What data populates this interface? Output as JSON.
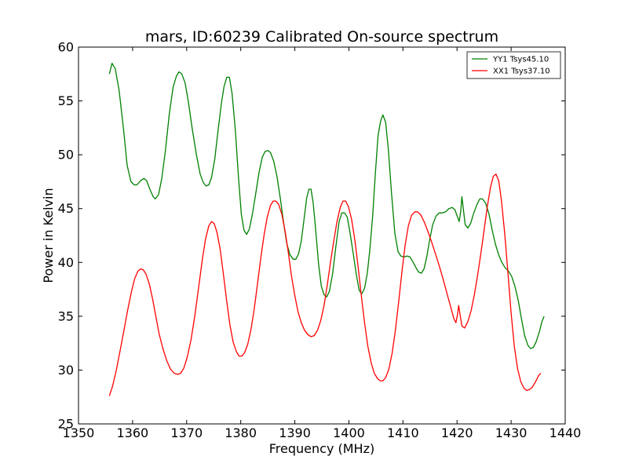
{
  "chart_data": {
    "type": "line",
    "title": "mars, ID:60239 Calibrated On-source spectrum",
    "xlabel": "Frequency (MHz)",
    "ylabel": "Power in Kelvin",
    "xlim": [
      1350,
      1440
    ],
    "ylim": [
      25,
      60
    ],
    "xticks": [
      1350,
      1360,
      1370,
      1380,
      1390,
      1400,
      1410,
      1420,
      1430,
      1440
    ],
    "yticks": [
      25,
      30,
      35,
      40,
      45,
      50,
      55,
      60
    ],
    "grid": false,
    "legend_position": "top-right",
    "series": [
      {
        "name": "YY1 Tsys45.10",
        "color": "#008000",
        "points": [
          [
            1355.7,
            57.5
          ],
          [
            1356.2,
            58.5
          ],
          [
            1356.8,
            58.0
          ],
          [
            1357.5,
            56.0
          ],
          [
            1358.3,
            52.5
          ],
          [
            1359.0,
            49.0
          ],
          [
            1359.7,
            47.5
          ],
          [
            1360.3,
            47.2
          ],
          [
            1360.8,
            47.2
          ],
          [
            1361.5,
            47.6
          ],
          [
            1362.1,
            47.8
          ],
          [
            1362.6,
            47.6
          ],
          [
            1363.2,
            46.8
          ],
          [
            1363.8,
            46.1
          ],
          [
            1364.2,
            45.9
          ],
          [
            1364.8,
            46.3
          ],
          [
            1365.4,
            47.8
          ],
          [
            1366.1,
            50.5
          ],
          [
            1366.8,
            53.8
          ],
          [
            1367.5,
            56.3
          ],
          [
            1368.1,
            57.3
          ],
          [
            1368.6,
            57.7
          ],
          [
            1369.1,
            57.5
          ],
          [
            1369.7,
            56.7
          ],
          [
            1370.3,
            55.0
          ],
          [
            1371.0,
            52.5
          ],
          [
            1371.8,
            50.0
          ],
          [
            1372.5,
            48.2
          ],
          [
            1373.1,
            47.4
          ],
          [
            1373.6,
            47.1
          ],
          [
            1374.1,
            47.2
          ],
          [
            1374.6,
            47.9
          ],
          [
            1375.2,
            49.6
          ],
          [
            1375.8,
            52.2
          ],
          [
            1376.4,
            54.7
          ],
          [
            1376.9,
            56.3
          ],
          [
            1377.4,
            57.2
          ],
          [
            1377.9,
            57.2
          ],
          [
            1378.4,
            55.7
          ],
          [
            1379.0,
            52.3
          ],
          [
            1379.6,
            47.8
          ],
          [
            1380.1,
            44.5
          ],
          [
            1380.6,
            43.0
          ],
          [
            1381.1,
            42.6
          ],
          [
            1381.6,
            43.1
          ],
          [
            1382.2,
            44.6
          ],
          [
            1382.8,
            46.5
          ],
          [
            1383.4,
            48.4
          ],
          [
            1384.0,
            49.8
          ],
          [
            1384.5,
            50.3
          ],
          [
            1385.0,
            50.4
          ],
          [
            1385.5,
            50.2
          ],
          [
            1386.1,
            49.4
          ],
          [
            1386.7,
            48.0
          ],
          [
            1387.3,
            46.0
          ],
          [
            1387.9,
            43.8
          ],
          [
            1388.5,
            41.8
          ],
          [
            1389.1,
            40.7
          ],
          [
            1389.7,
            40.3
          ],
          [
            1390.2,
            40.3
          ],
          [
            1390.7,
            40.8
          ],
          [
            1391.2,
            42.0
          ],
          [
            1391.7,
            44.0
          ],
          [
            1392.2,
            46.0
          ],
          [
            1392.6,
            46.8
          ],
          [
            1393.0,
            46.8
          ],
          [
            1393.4,
            45.5
          ],
          [
            1393.9,
            42.8
          ],
          [
            1394.4,
            39.8
          ],
          [
            1394.9,
            37.8
          ],
          [
            1395.4,
            37.0
          ],
          [
            1395.9,
            36.8
          ],
          [
            1396.4,
            37.3
          ],
          [
            1397.0,
            39.0
          ],
          [
            1397.6,
            41.5
          ],
          [
            1398.2,
            43.8
          ],
          [
            1398.7,
            44.6
          ],
          [
            1399.2,
            44.6
          ],
          [
            1399.7,
            44.2
          ],
          [
            1400.2,
            42.8
          ],
          [
            1400.8,
            40.8
          ],
          [
            1401.4,
            38.8
          ],
          [
            1401.9,
            37.4
          ],
          [
            1402.4,
            37.1
          ],
          [
            1402.9,
            37.6
          ],
          [
            1403.4,
            39.0
          ],
          [
            1403.9,
            41.3
          ],
          [
            1404.4,
            44.4
          ],
          [
            1404.9,
            48.3
          ],
          [
            1405.4,
            51.8
          ],
          [
            1405.9,
            53.2
          ],
          [
            1406.3,
            53.7
          ],
          [
            1406.8,
            53.0
          ],
          [
            1407.3,
            50.5
          ],
          [
            1407.9,
            46.3
          ],
          [
            1408.5,
            42.7
          ],
          [
            1409.1,
            41.0
          ],
          [
            1409.6,
            40.6
          ],
          [
            1410.2,
            40.5
          ],
          [
            1410.8,
            40.6
          ],
          [
            1411.3,
            40.5
          ],
          [
            1411.9,
            40.0
          ],
          [
            1412.4,
            39.5
          ],
          [
            1412.9,
            39.1
          ],
          [
            1413.4,
            39.0
          ],
          [
            1413.9,
            39.4
          ],
          [
            1414.4,
            40.5
          ],
          [
            1414.9,
            42.0
          ],
          [
            1415.5,
            43.5
          ],
          [
            1416.1,
            44.3
          ],
          [
            1416.7,
            44.6
          ],
          [
            1417.3,
            44.6
          ],
          [
            1417.9,
            44.7
          ],
          [
            1418.5,
            45.0
          ],
          [
            1419.1,
            45.1
          ],
          [
            1419.6,
            44.9
          ],
          [
            1420.1,
            44.2
          ],
          [
            1420.4,
            43.8
          ],
          [
            1420.7,
            44.8
          ],
          [
            1420.9,
            46.1
          ],
          [
            1421.2,
            44.8
          ],
          [
            1421.5,
            43.5
          ],
          [
            1422.0,
            43.2
          ],
          [
            1422.5,
            43.6
          ],
          [
            1423.1,
            44.6
          ],
          [
            1423.7,
            45.4
          ],
          [
            1424.2,
            45.9
          ],
          [
            1424.7,
            45.9
          ],
          [
            1425.3,
            45.5
          ],
          [
            1425.9,
            44.5
          ],
          [
            1426.5,
            43.0
          ],
          [
            1427.1,
            41.7
          ],
          [
            1427.7,
            40.7
          ],
          [
            1428.3,
            40.0
          ],
          [
            1428.9,
            39.5
          ],
          [
            1429.5,
            39.2
          ],
          [
            1430.1,
            38.7
          ],
          [
            1430.7,
            37.8
          ],
          [
            1431.3,
            36.5
          ],
          [
            1431.9,
            34.8
          ],
          [
            1432.5,
            33.2
          ],
          [
            1433.1,
            32.3
          ],
          [
            1433.6,
            32.0
          ],
          [
            1434.1,
            32.1
          ],
          [
            1434.6,
            32.6
          ],
          [
            1435.2,
            33.5
          ],
          [
            1435.7,
            34.5
          ],
          [
            1436.1,
            35.0
          ]
        ]
      },
      {
        "name": "XX1 Tsys37.10",
        "color": "#ff0000",
        "points": [
          [
            1355.7,
            27.6
          ],
          [
            1356.3,
            28.5
          ],
          [
            1357.0,
            30.0
          ],
          [
            1357.7,
            31.8
          ],
          [
            1358.4,
            33.7
          ],
          [
            1359.1,
            35.6
          ],
          [
            1359.8,
            37.3
          ],
          [
            1360.4,
            38.5
          ],
          [
            1361.0,
            39.2
          ],
          [
            1361.5,
            39.4
          ],
          [
            1362.0,
            39.3
          ],
          [
            1362.5,
            38.9
          ],
          [
            1363.1,
            38.0
          ],
          [
            1363.7,
            36.6
          ],
          [
            1364.3,
            35.0
          ],
          [
            1364.9,
            33.4
          ],
          [
            1365.6,
            32.0
          ],
          [
            1366.3,
            30.9
          ],
          [
            1367.0,
            30.1
          ],
          [
            1367.7,
            29.7
          ],
          [
            1368.3,
            29.6
          ],
          [
            1368.9,
            29.7
          ],
          [
            1369.5,
            30.2
          ],
          [
            1370.1,
            31.2
          ],
          [
            1370.8,
            32.8
          ],
          [
            1371.5,
            35.0
          ],
          [
            1372.2,
            37.6
          ],
          [
            1372.9,
            40.3
          ],
          [
            1373.5,
            42.2
          ],
          [
            1374.1,
            43.4
          ],
          [
            1374.6,
            43.8
          ],
          [
            1375.1,
            43.6
          ],
          [
            1375.6,
            42.8
          ],
          [
            1376.2,
            41.2
          ],
          [
            1376.8,
            38.9
          ],
          [
            1377.4,
            36.4
          ],
          [
            1378.0,
            34.2
          ],
          [
            1378.6,
            32.6
          ],
          [
            1379.2,
            31.7
          ],
          [
            1379.7,
            31.3
          ],
          [
            1380.2,
            31.3
          ],
          [
            1380.7,
            31.6
          ],
          [
            1381.3,
            32.4
          ],
          [
            1381.9,
            33.8
          ],
          [
            1382.5,
            35.7
          ],
          [
            1383.1,
            38.0
          ],
          [
            1383.7,
            40.4
          ],
          [
            1384.3,
            42.5
          ],
          [
            1384.9,
            44.2
          ],
          [
            1385.5,
            45.3
          ],
          [
            1386.0,
            45.7
          ],
          [
            1386.5,
            45.7
          ],
          [
            1387.0,
            45.4
          ],
          [
            1387.6,
            44.5
          ],
          [
            1388.2,
            42.9
          ],
          [
            1388.8,
            40.9
          ],
          [
            1389.4,
            38.7
          ],
          [
            1390.0,
            36.9
          ],
          [
            1390.6,
            35.4
          ],
          [
            1391.2,
            34.4
          ],
          [
            1391.8,
            33.7
          ],
          [
            1392.4,
            33.3
          ],
          [
            1393.0,
            33.1
          ],
          [
            1393.6,
            33.2
          ],
          [
            1394.2,
            33.7
          ],
          [
            1394.8,
            34.6
          ],
          [
            1395.4,
            36.0
          ],
          [
            1396.0,
            37.9
          ],
          [
            1396.6,
            40.0
          ],
          [
            1397.2,
            42.0
          ],
          [
            1397.8,
            43.8
          ],
          [
            1398.4,
            45.1
          ],
          [
            1398.9,
            45.7
          ],
          [
            1399.4,
            45.7
          ],
          [
            1399.9,
            45.2
          ],
          [
            1400.5,
            44.0
          ],
          [
            1401.1,
            42.1
          ],
          [
            1401.7,
            39.6
          ],
          [
            1402.3,
            36.9
          ],
          [
            1402.9,
            34.4
          ],
          [
            1403.5,
            32.2
          ],
          [
            1404.1,
            30.7
          ],
          [
            1404.7,
            29.7
          ],
          [
            1405.3,
            29.2
          ],
          [
            1405.8,
            29.0
          ],
          [
            1406.3,
            29.0
          ],
          [
            1406.8,
            29.3
          ],
          [
            1407.4,
            30.1
          ],
          [
            1408.0,
            31.6
          ],
          [
            1408.6,
            33.7
          ],
          [
            1409.2,
            36.3
          ],
          [
            1409.8,
            39.1
          ],
          [
            1410.4,
            41.6
          ],
          [
            1411.0,
            43.4
          ],
          [
            1411.6,
            44.4
          ],
          [
            1412.2,
            44.7
          ],
          [
            1412.7,
            44.7
          ],
          [
            1413.3,
            44.4
          ],
          [
            1413.9,
            43.8
          ],
          [
            1414.6,
            42.9
          ],
          [
            1415.3,
            41.9
          ],
          [
            1416.0,
            40.8
          ],
          [
            1416.7,
            39.7
          ],
          [
            1417.4,
            38.5
          ],
          [
            1418.1,
            37.2
          ],
          [
            1418.8,
            35.9
          ],
          [
            1419.4,
            34.8
          ],
          [
            1419.8,
            34.4
          ],
          [
            1420.1,
            35.2
          ],
          [
            1420.3,
            36.0
          ],
          [
            1420.6,
            35.0
          ],
          [
            1420.9,
            34.1
          ],
          [
            1421.4,
            33.9
          ],
          [
            1422.0,
            34.5
          ],
          [
            1422.6,
            35.5
          ],
          [
            1423.2,
            37.0
          ],
          [
            1423.8,
            38.8
          ],
          [
            1424.4,
            40.8
          ],
          [
            1425.0,
            43.0
          ],
          [
            1425.6,
            45.2
          ],
          [
            1426.2,
            47.0
          ],
          [
            1426.7,
            48.0
          ],
          [
            1427.2,
            48.2
          ],
          [
            1427.7,
            47.6
          ],
          [
            1428.2,
            45.8
          ],
          [
            1428.8,
            42.8
          ],
          [
            1429.4,
            39.1
          ],
          [
            1430.0,
            35.3
          ],
          [
            1430.6,
            32.2
          ],
          [
            1431.2,
            30.1
          ],
          [
            1431.8,
            28.9
          ],
          [
            1432.4,
            28.3
          ],
          [
            1432.9,
            28.1
          ],
          [
            1433.4,
            28.2
          ],
          [
            1433.9,
            28.4
          ],
          [
            1434.5,
            28.9
          ],
          [
            1435.1,
            29.5
          ],
          [
            1435.5,
            29.7
          ]
        ]
      }
    ]
  }
}
